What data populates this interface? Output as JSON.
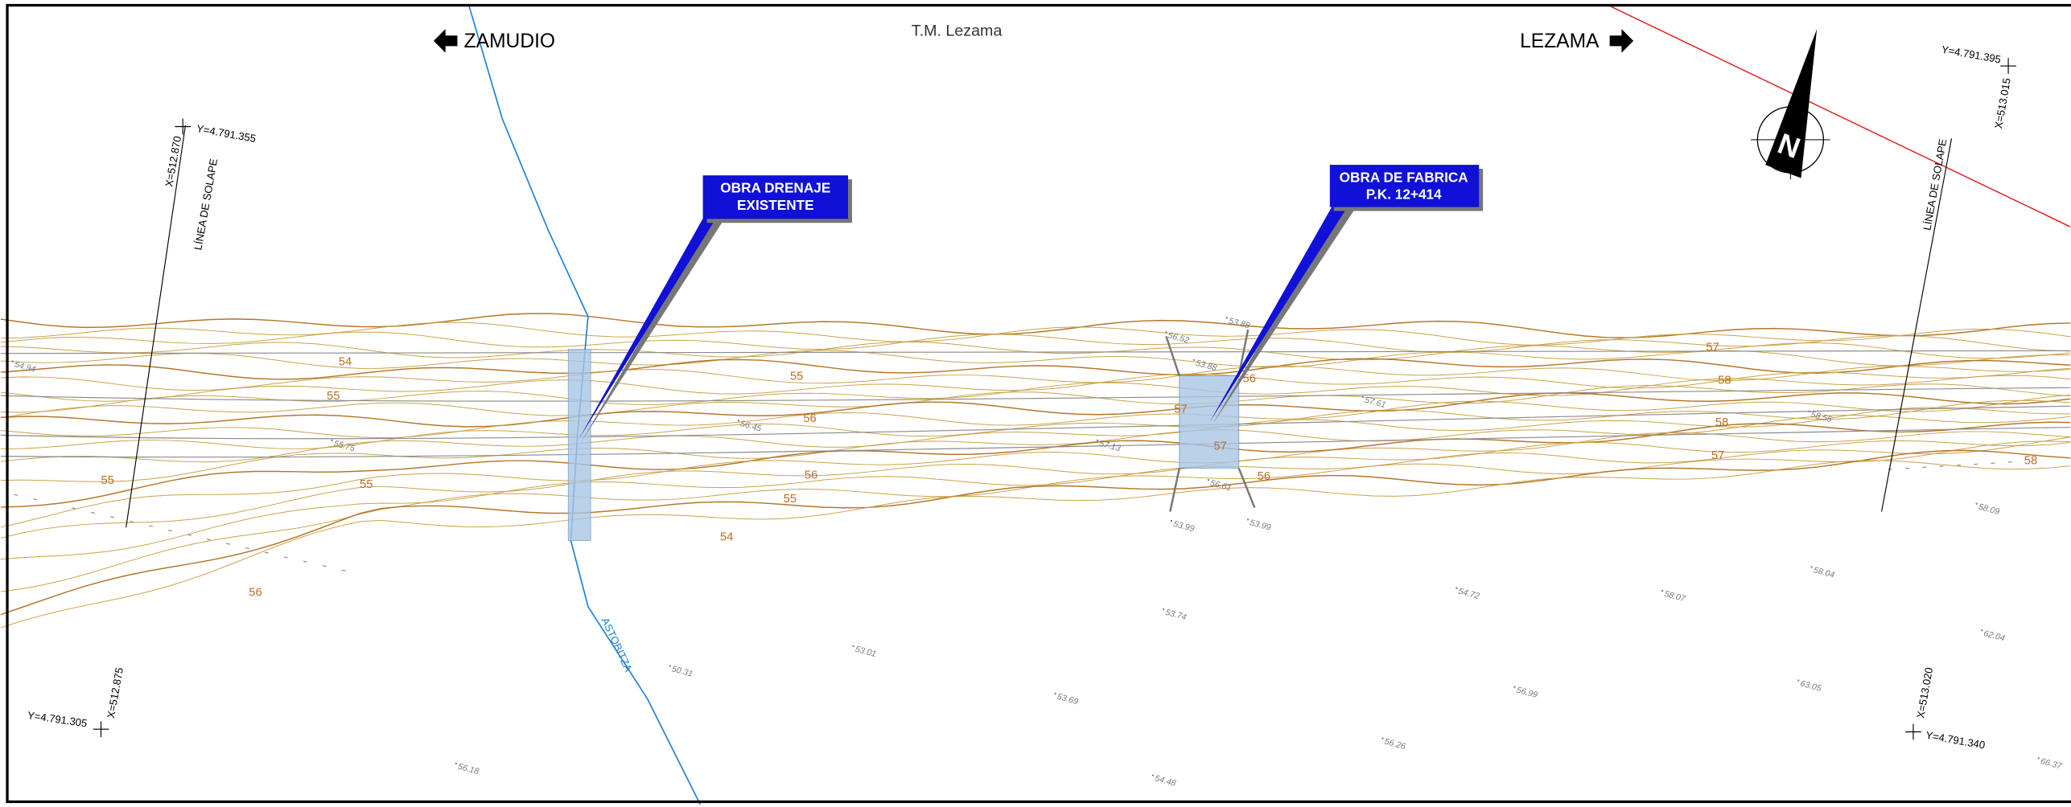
{
  "header": {
    "left_direction": "ZAMUDIO",
    "right_direction": "LEZAMA",
    "municipality": "T.M. Lezama",
    "north": "N"
  },
  "callouts": [
    {
      "lines": [
        "OBRA DRENAJE",
        "EXISTENTE"
      ]
    },
    {
      "lines": [
        "OBRA DE FABRICA",
        "P.K. 12+414"
      ]
    }
  ],
  "river": "ASTOBITZA",
  "overlap_lines": [
    "LÍNEA DE SOLAPE",
    "LÍNEA DE SOLAPE"
  ],
  "coordinates": [
    "X=512.870",
    "Y=4.791.355",
    "Y=4.791.305",
    "X=512.875",
    "Y=4.791.395",
    "X=513.015",
    "X=513.020",
    "Y=4.791.340"
  ],
  "contour_labels": [
    "54",
    "55",
    "55",
    "55",
    "56",
    "55",
    "56",
    "56",
    "55",
    "54",
    "57",
    "57",
    "56",
    "56",
    "57",
    "58",
    "58",
    "57",
    "58"
  ],
  "spot_heights": [
    "54.94",
    "55.75",
    "56.45",
    "57.13",
    "56.52",
    "53.88",
    "53.88",
    "57.61",
    "58.55",
    "58.09",
    "56.61",
    "53.99",
    "53.99",
    "53.74",
    "53.01",
    "50.31",
    "53.69",
    "56.18",
    "54.48",
    "56.26",
    "56.99",
    "58.07",
    "54.72",
    "58.04",
    "63.05",
    "62.04",
    "66.37"
  ]
}
